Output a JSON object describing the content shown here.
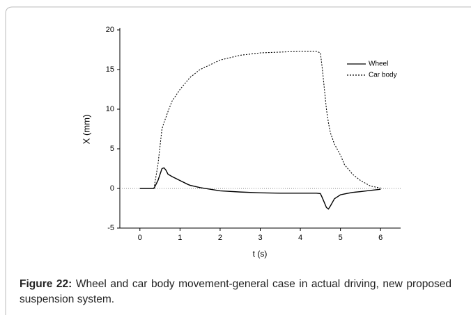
{
  "chart_data": {
    "type": "line",
    "xlabel": "t (s)",
    "ylabel": "X (mm)",
    "x": [
      0,
      0.35,
      0.45,
      0.55,
      0.6,
      0.65,
      0.7,
      0.8,
      1,
      1.2,
      1.25,
      1.5,
      2,
      2.5,
      3,
      3.5,
      4,
      4.4,
      4.5,
      4.55,
      4.65,
      4.7,
      4.75,
      4.85,
      5,
      5.1,
      5.3,
      5.5,
      5.75,
      6
    ],
    "series": [
      {
        "name": "Wheel",
        "color": "#000000",
        "dash": "solid",
        "values": [
          0,
          0,
          1,
          2.5,
          2.6,
          2.3,
          1.8,
          1.5,
          1,
          0.5,
          0.4,
          0.1,
          -0.3,
          -0.45,
          -0.55,
          -0.6,
          -0.6,
          -0.6,
          -0.65,
          -1.2,
          -2.4,
          -2.6,
          -2.2,
          -1.3,
          -0.8,
          -0.7,
          -0.5,
          -0.4,
          -0.25,
          -0.1
        ]
      },
      {
        "name": "Car body",
        "color": "#000000",
        "dash": "dotted",
        "values": [
          0,
          0,
          3,
          7.5,
          8.3,
          9,
          9.7,
          11,
          12.5,
          13.7,
          14,
          15,
          16.2,
          16.8,
          17.1,
          17.2,
          17.3,
          17.3,
          17.1,
          15,
          10,
          8.3,
          7,
          5.6,
          4.2,
          3,
          1.8,
          1,
          0.3,
          0.05
        ]
      }
    ],
    "xlim": [
      -0.5,
      6.5
    ],
    "xticks": [
      0,
      1,
      2,
      3,
      4,
      5,
      6
    ],
    "ylim": [
      -5,
      20
    ],
    "yticks": [
      -5,
      0,
      5,
      10,
      15,
      20
    ],
    "hline": 0,
    "legend": "upper right"
  },
  "caption": {
    "label": "Figure 22:",
    "text": "Wheel and car body movement-general case in actual driving, new proposed suspension system."
  }
}
